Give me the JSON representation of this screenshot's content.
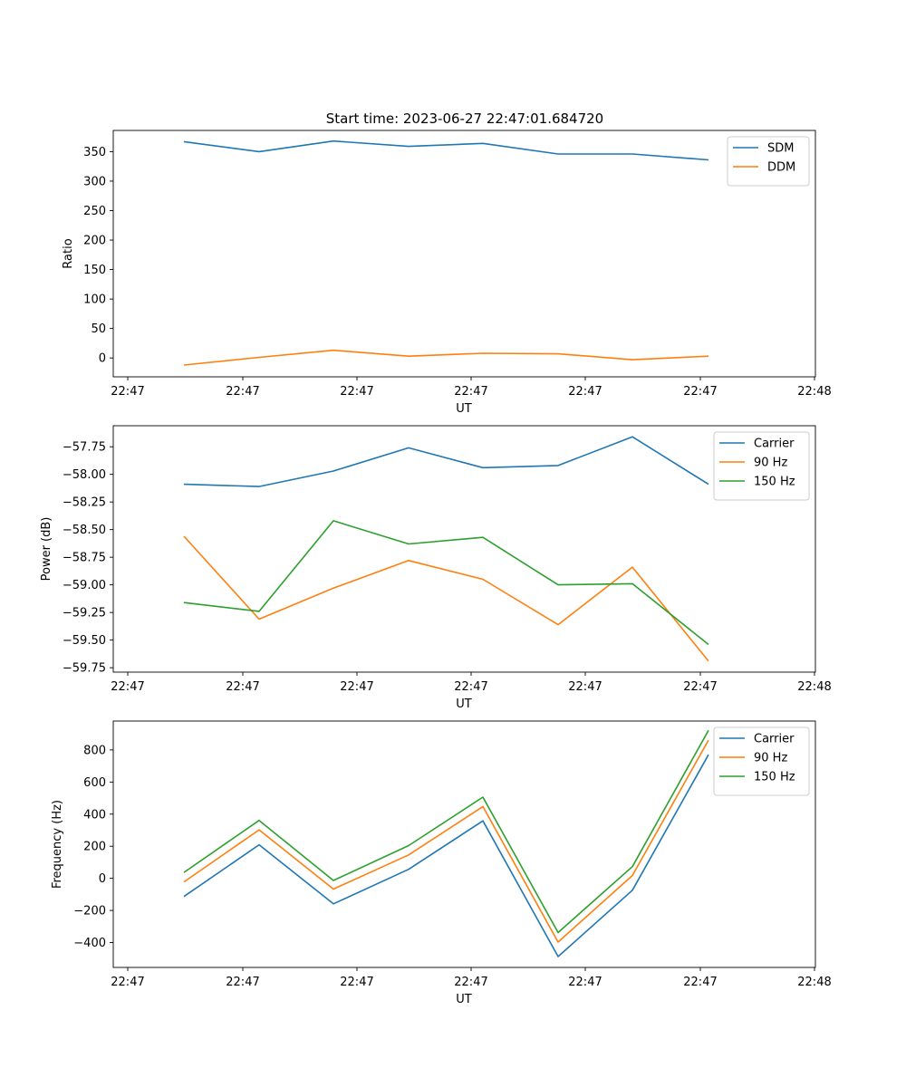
{
  "figure": {
    "title": "Start time: 2023-06-27 22:47:01.684720"
  },
  "colors": {
    "blue": "#1f77b4",
    "orange": "#ff7f0e",
    "green": "#2ca02c"
  },
  "chart_data": [
    {
      "type": "line",
      "ylabel": "Ratio",
      "xlabel": "UT",
      "x_tick_labels": [
        "22:47",
        "22:47",
        "22:47",
        "22:47",
        "22:47",
        "22:47",
        "22:47",
        "22:48"
      ],
      "y_ticks": [
        0,
        50,
        100,
        150,
        200,
        250,
        300,
        350
      ],
      "y_tick_labels": [
        "0",
        "50",
        "100",
        "150",
        "200",
        "250",
        "300",
        "350"
      ],
      "ylim": [
        -32,
        386
      ],
      "legend_position": "top-right",
      "series": [
        {
          "name": "SDM",
          "color": "blue",
          "values": [
            367,
            350,
            368,
            359,
            364,
            346,
            346,
            336
          ]
        },
        {
          "name": "DDM",
          "color": "orange",
          "values": [
            -12,
            1,
            13,
            3,
            8,
            7,
            -3,
            3
          ]
        }
      ]
    },
    {
      "type": "line",
      "ylabel": "Power (dB)",
      "xlabel": "UT",
      "x_tick_labels": [
        "22:47",
        "22:47",
        "22:47",
        "22:47",
        "22:47",
        "22:47",
        "22:47",
        "22:48"
      ],
      "y_ticks": [
        -57.75,
        -58.0,
        -58.25,
        -58.5,
        -58.75,
        -59.0,
        -59.25,
        -59.5,
        -59.75
      ],
      "y_tick_labels": [
        "−57.75",
        "−58.00",
        "−58.25",
        "−58.50",
        "−58.75",
        "−59.00",
        "−59.25",
        "−59.50",
        "−59.75"
      ],
      "ylim": [
        -59.79,
        -57.56
      ],
      "legend_position": "top-right",
      "series": [
        {
          "name": "Carrier",
          "color": "blue",
          "values": [
            -58.09,
            -58.11,
            -57.97,
            -57.76,
            -57.94,
            -57.92,
            -57.66,
            -58.09
          ]
        },
        {
          "name": "90 Hz",
          "color": "orange",
          "values": [
            -58.56,
            -59.31,
            -59.03,
            -58.78,
            -58.95,
            -59.36,
            -58.84,
            -59.69
          ]
        },
        {
          "name": "150 Hz",
          "color": "green",
          "values": [
            -59.16,
            -59.24,
            -58.42,
            -58.63,
            -58.57,
            -59.0,
            -58.99,
            -59.54
          ]
        }
      ]
    },
    {
      "type": "line",
      "ylabel": "Frequency (Hz)",
      "xlabel": "UT",
      "x_tick_labels": [
        "22:47",
        "22:47",
        "22:47",
        "22:47",
        "22:47",
        "22:47",
        "22:47",
        "22:48"
      ],
      "y_ticks": [
        -400,
        -200,
        0,
        200,
        400,
        600,
        800
      ],
      "y_tick_labels": [
        "−400",
        "−200",
        "0",
        "200",
        "400",
        "600",
        "800"
      ],
      "ylim": [
        -555,
        980
      ],
      "legend_position": "top-right",
      "series": [
        {
          "name": "Carrier",
          "color": "blue",
          "values": [
            -113,
            209,
            -159,
            56,
            358,
            -487,
            -74,
            770
          ]
        },
        {
          "name": "90 Hz",
          "color": "orange",
          "values": [
            -22,
            302,
            -67,
            146,
            447,
            -397,
            18,
            861
          ]
        },
        {
          "name": "150 Hz",
          "color": "green",
          "values": [
            37,
            361,
            -13,
            204,
            506,
            -338,
            73,
            922
          ]
        }
      ]
    }
  ]
}
